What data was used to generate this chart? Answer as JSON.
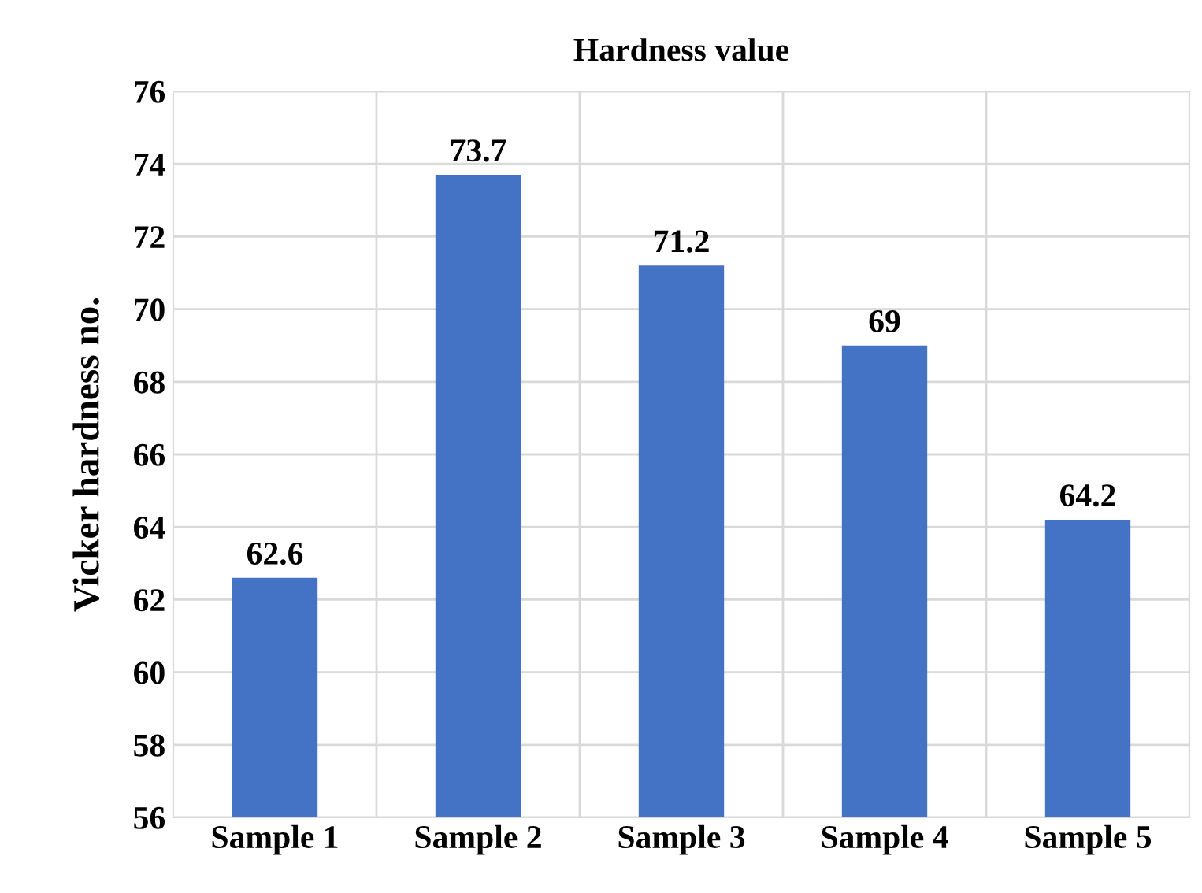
{
  "chart_data": {
    "type": "bar",
    "title": "Hardness value",
    "ylabel": "Vicker hardness no.",
    "categories": [
      "Sample 1",
      "Sample 2",
      "Sample 3",
      "Sample 4",
      "Sample 5"
    ],
    "values": [
      62.6,
      73.7,
      71.2,
      69,
      64.2
    ],
    "color": "#4472c4",
    "ylim": [
      56,
      76
    ],
    "yticks": [
      56,
      58,
      60,
      62,
      64,
      66,
      68,
      70,
      72,
      74,
      76
    ],
    "grid": true,
    "data_labels": true
  }
}
